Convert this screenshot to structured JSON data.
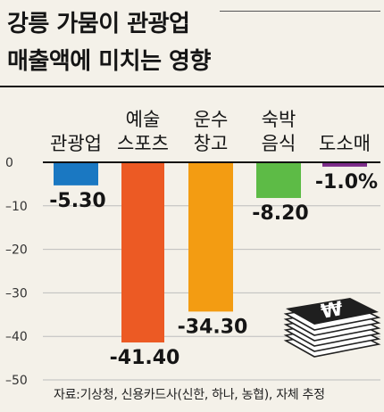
{
  "title": {
    "line1": "강릉 가뭄이 관광업",
    "line2": "매출액에 미치는 영향"
  },
  "source": "자료:기상청, 신용카드사(신한, 하나, 농협), 자체 추정",
  "chart_data": {
    "type": "bar",
    "categories": [
      [
        "관광업"
      ],
      [
        "예술",
        "스포츠"
      ],
      [
        "운수",
        "창고"
      ],
      [
        "숙박",
        "음식"
      ],
      [
        "도소매"
      ]
    ],
    "values": [
      -5.3,
      -41.4,
      -34.3,
      -8.2,
      -1.0
    ],
    "value_labels": [
      "-5.30",
      "-41.40",
      "-34.30",
      "-8.20",
      "-1.0%"
    ],
    "colors": [
      "#1a78c2",
      "#ec5a24",
      "#f39c12",
      "#5dbb46",
      "#7b2b88"
    ],
    "yticks": [
      0,
      -10,
      -20,
      -30,
      -40,
      -50
    ],
    "ytick_labels": [
      "0",
      "–10",
      "–20",
      "–30",
      "–40",
      "–50"
    ],
    "ylim": [
      -50,
      0
    ],
    "grid": true,
    "legend": "none"
  }
}
